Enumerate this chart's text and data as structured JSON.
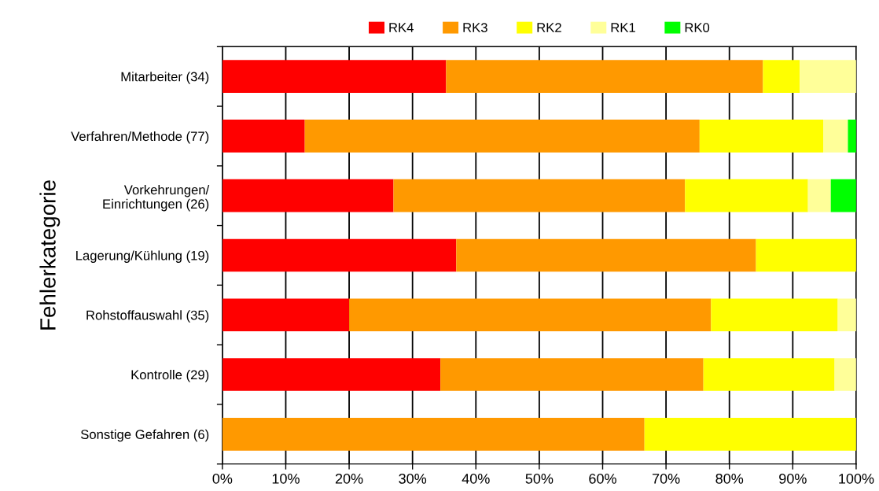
{
  "chart_data": {
    "type": "bar",
    "orientation": "horizontal",
    "stacked": true,
    "ylabel": "Fehlerkategorie",
    "categories": [
      "Mitarbeiter (34)",
      "Verfahren/Methode (77)",
      "Vorkehrungen/\nEinrichtungen (26)",
      "Lagerung/Kühlung (19)",
      "Rohstoffauswahl (35)",
      "Kontrolle (29)",
      "Sonstige Gefahren (6)"
    ],
    "series": [
      {
        "name": "RK4",
        "color": "#ff0000",
        "values": [
          35.3,
          13.0,
          27.0,
          36.9,
          20.0,
          34.4,
          0
        ]
      },
      {
        "name": "RK3",
        "color": "#ff9900",
        "values": [
          50.0,
          62.3,
          46.0,
          47.3,
          57.1,
          41.5,
          66.6
        ]
      },
      {
        "name": "RK2",
        "color": "#ffff00",
        "values": [
          5.8,
          19.5,
          19.4,
          15.8,
          20.0,
          20.7,
          33.4
        ]
      },
      {
        "name": "RK1",
        "color": "#ffff99",
        "values": [
          8.9,
          3.9,
          3.6,
          0,
          2.9,
          3.4,
          0
        ]
      },
      {
        "name": "RK0",
        "color": "#00ff00",
        "values": [
          0,
          1.3,
          4.0,
          0,
          0,
          0,
          0
        ]
      }
    ],
    "xlim": [
      0,
      100
    ],
    "xticks": [
      {
        "value": 0,
        "label": "0%"
      },
      {
        "value": 10,
        "label": "10%"
      },
      {
        "value": 20,
        "label": "20%"
      },
      {
        "value": 30,
        "label": "30%"
      },
      {
        "value": 40,
        "label": "40%"
      },
      {
        "value": 50,
        "label": "50%"
      },
      {
        "value": 60,
        "label": "60%"
      },
      {
        "value": 70,
        "label": "70%"
      },
      {
        "value": 80,
        "label": "80%"
      },
      {
        "value": 90,
        "label": "90%"
      },
      {
        "value": 100,
        "label": "100%"
      }
    ],
    "grid": "x",
    "legend": "top"
  }
}
